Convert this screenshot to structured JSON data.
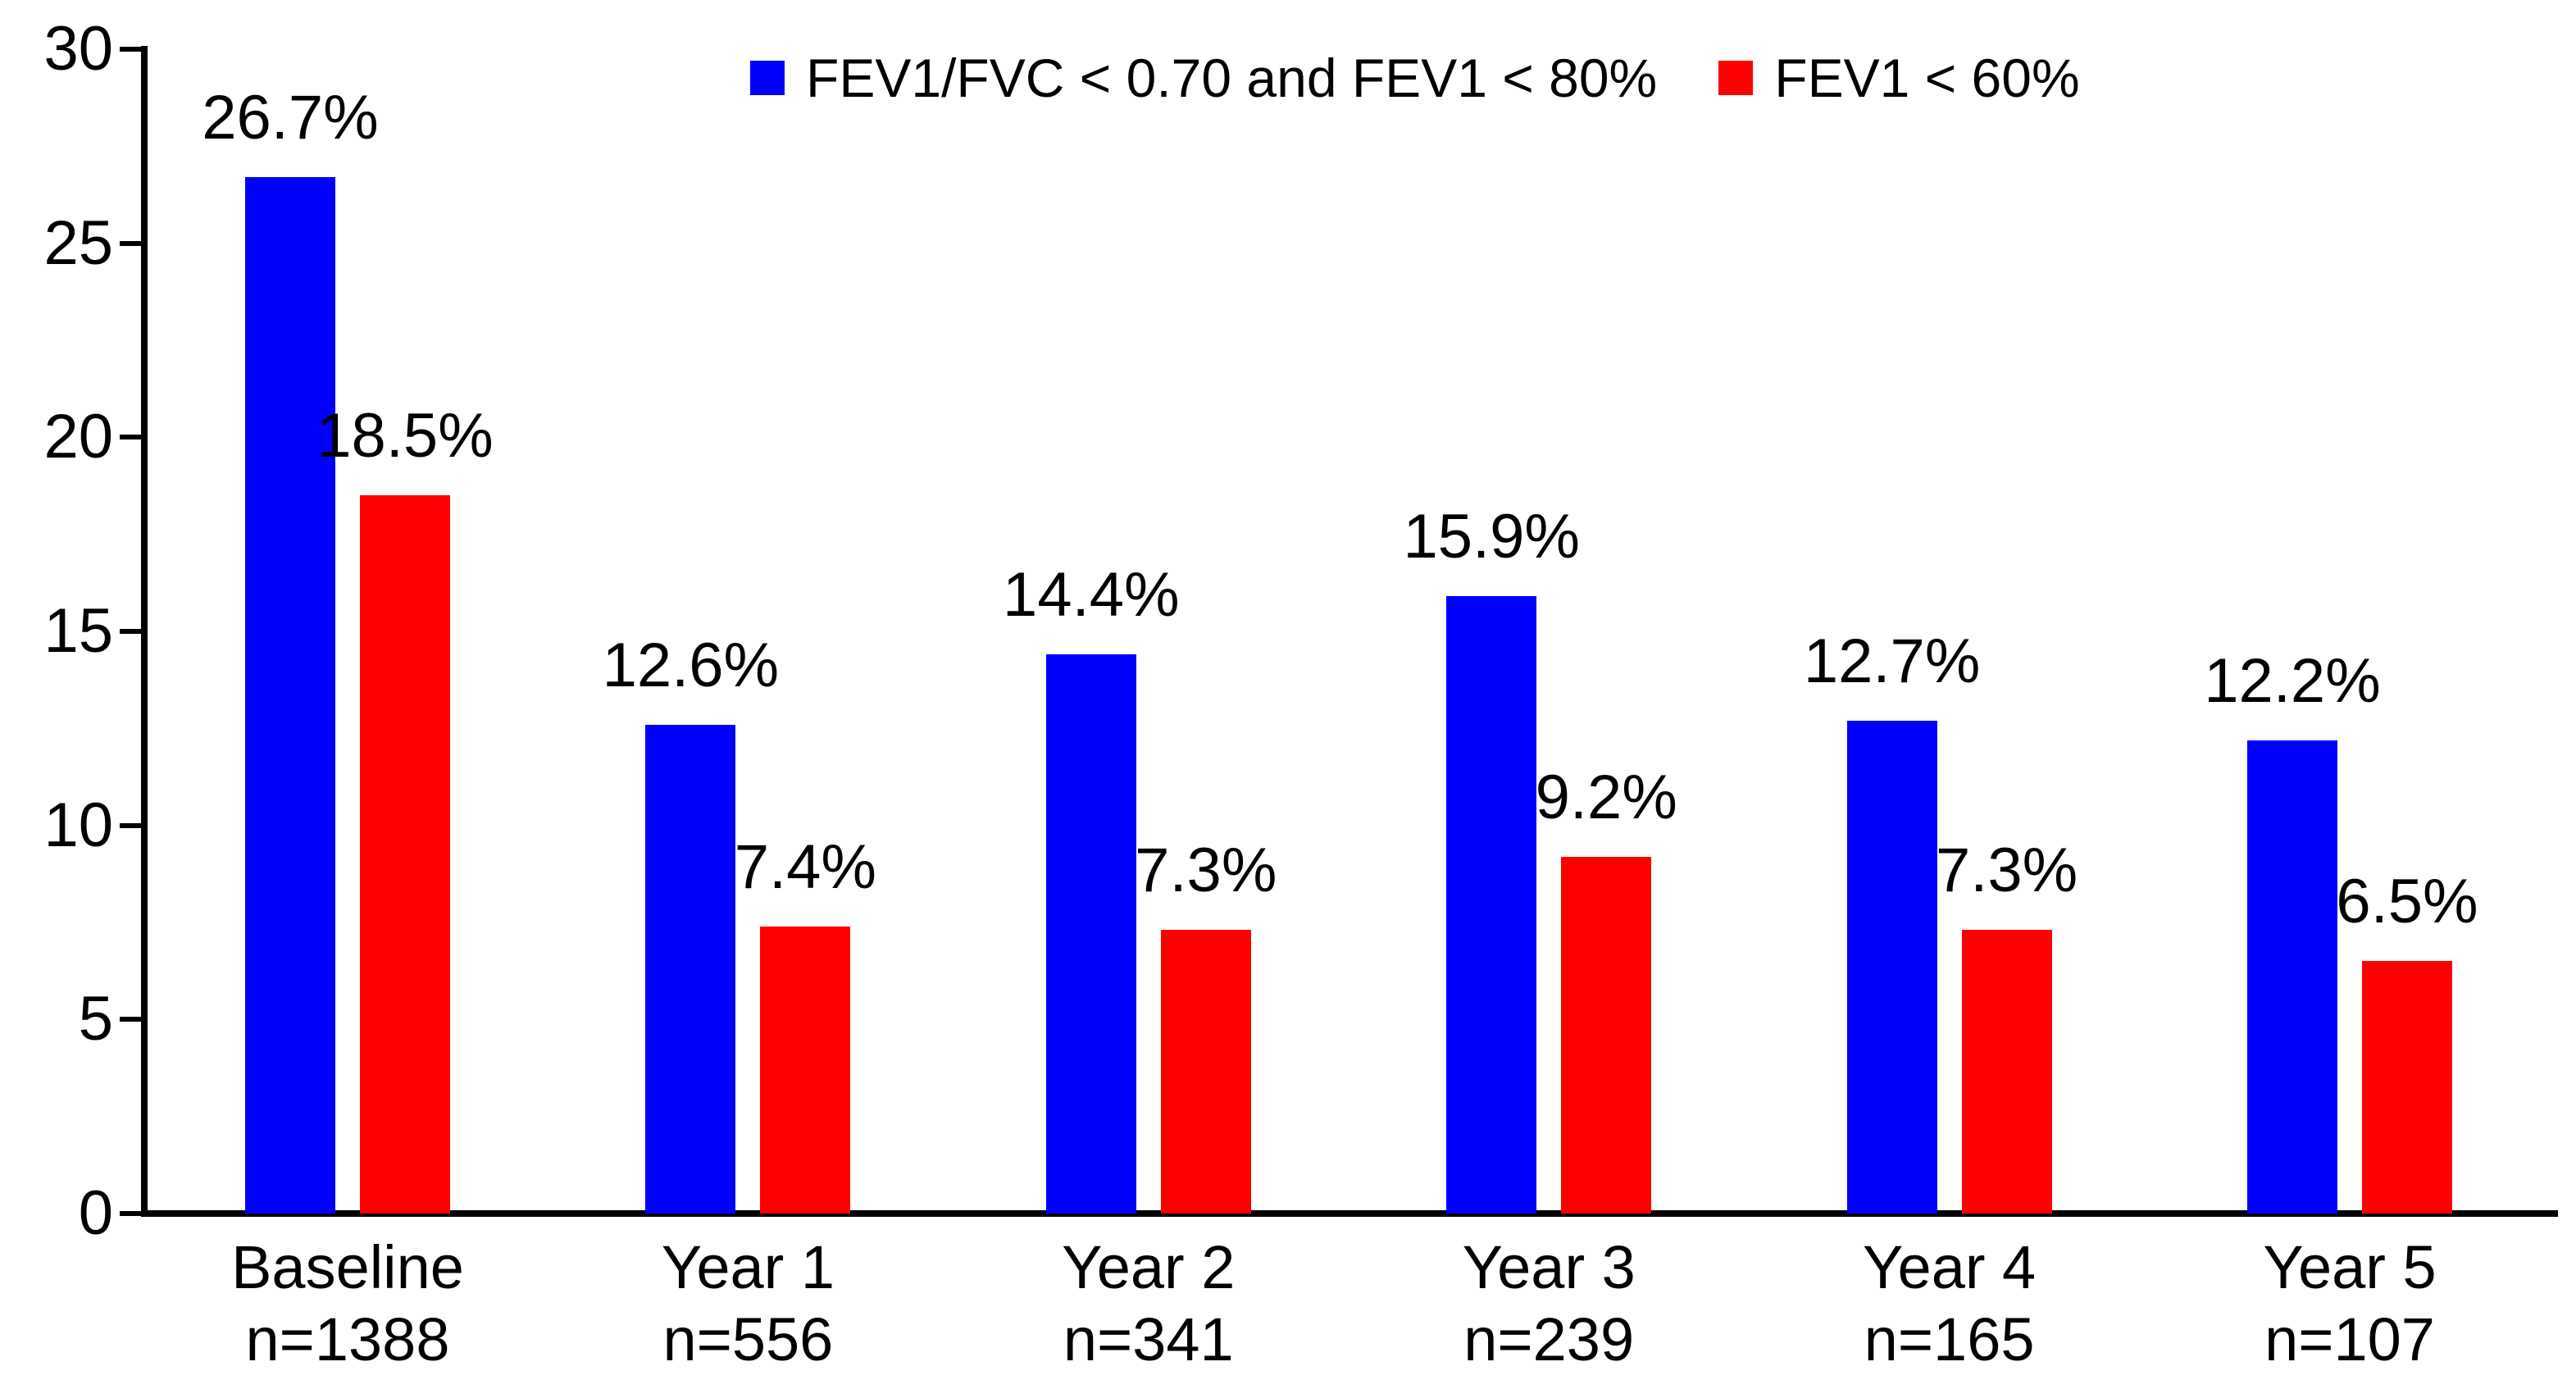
{
  "chart_data": {
    "type": "bar",
    "title": "",
    "categories": [
      "Baseline",
      "Year 1",
      "Year 2",
      "Year 3",
      "Year 4",
      "Year 5"
    ],
    "category_sublabels": [
      "n=1388",
      "n=556",
      "n=341",
      "n=239",
      "n=165",
      "n=107"
    ],
    "series": [
      {
        "name": "FEV1/FVC < 0.70 and FEV1 < 80%",
        "color": "#0000FF",
        "values": [
          26.7,
          12.6,
          14.4,
          15.9,
          12.7,
          12.2
        ],
        "labels": [
          "26.7%",
          "12.6%",
          "14.4%",
          "15.9%",
          "12.7%",
          "12.2%"
        ]
      },
      {
        "name": "FEV1 < 60%",
        "color": "#FF0000",
        "values": [
          18.5,
          7.4,
          7.3,
          9.2,
          7.3,
          6.5
        ],
        "labels": [
          "18.5%",
          "7.4%",
          "7.3%",
          "9.2%",
          "7.3%",
          "6.5%"
        ]
      }
    ],
    "yticks": [
      0,
      5,
      10,
      15,
      20,
      25,
      30
    ],
    "ylim": [
      0,
      30
    ],
    "xlabel": "",
    "ylabel": "",
    "grid": false,
    "legend_position": "top",
    "axis_color": "#000000",
    "background": "#FFFFFF",
    "text_color": "#000000"
  }
}
